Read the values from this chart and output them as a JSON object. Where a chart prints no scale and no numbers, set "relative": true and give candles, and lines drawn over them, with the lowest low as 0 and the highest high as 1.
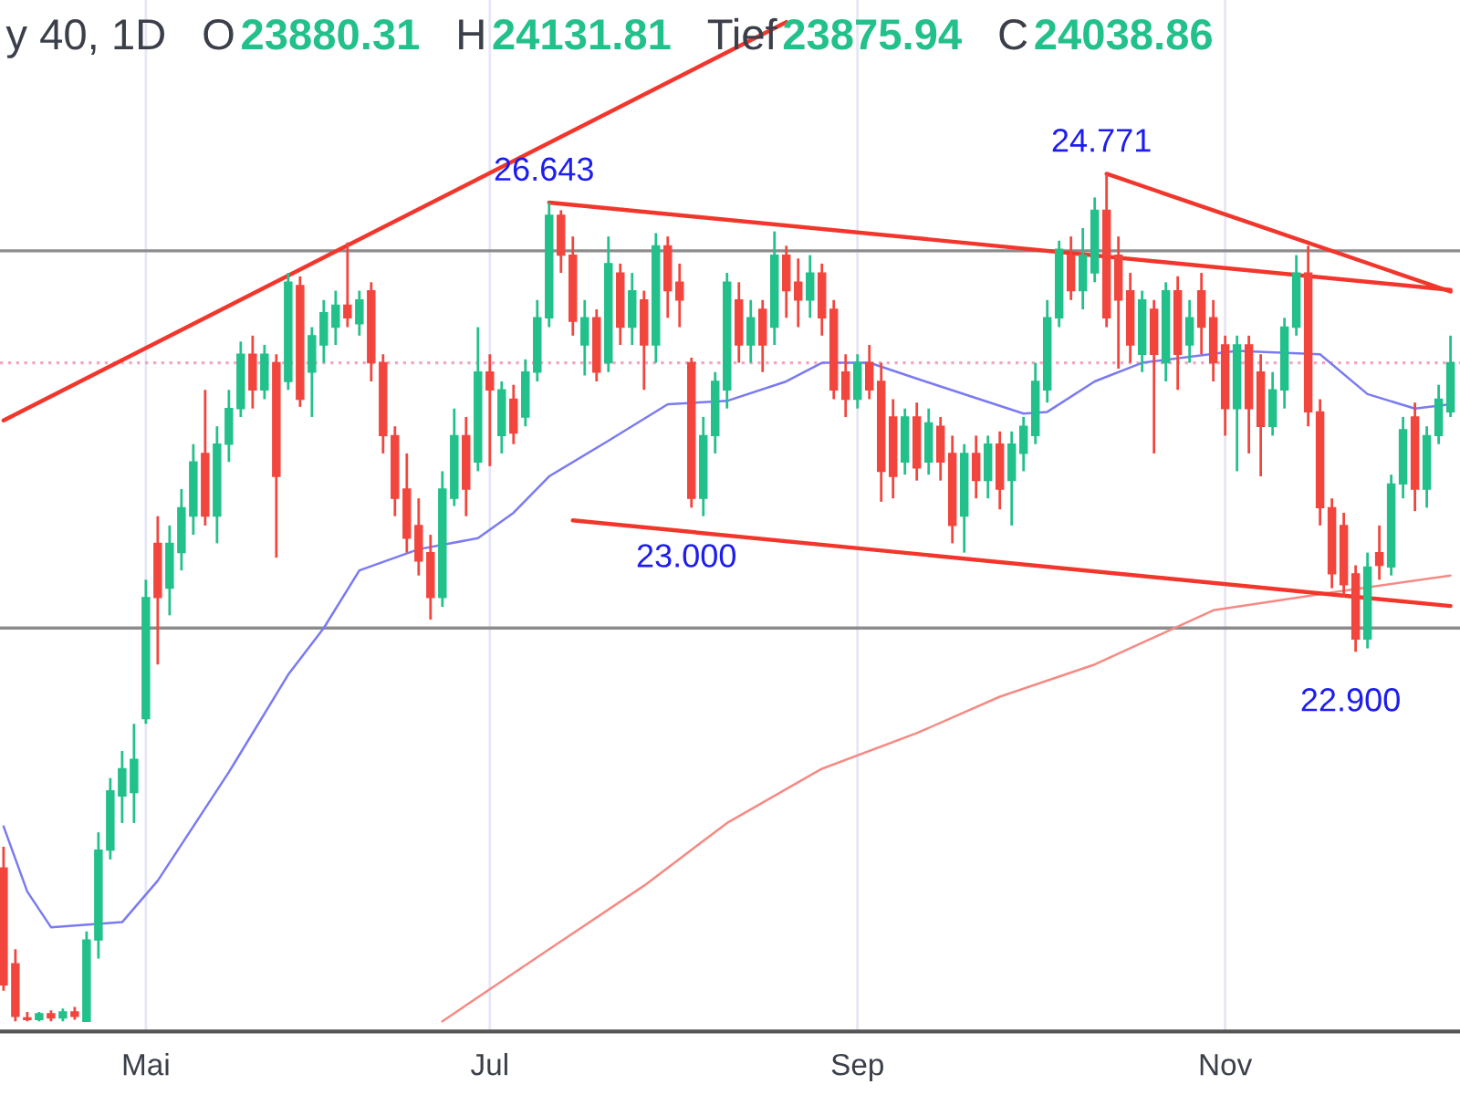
{
  "chart_data": {
    "type": "candlestick",
    "relative": true,
    "title": "y 40, 1D",
    "annotations": [
      "O",
      "23880.31",
      "H",
      "24131.81",
      "Tief",
      "23875.94",
      "C",
      "24038.86",
      {
        "text": "26.643",
        "y": 0.966
      },
      {
        "text": "24.771",
        "y": 1
      },
      {
        "text": "23.000",
        "y": 0.606
      },
      {
        "text": "22.900",
        "y": 0.436
      }
    ],
    "categories": [
      null,
      null,
      null,
      null,
      null,
      null,
      null,
      null,
      null,
      null,
      null,
      null,
      "Mai",
      null,
      null,
      null,
      null,
      null,
      null,
      null,
      null,
      null,
      null,
      null,
      null,
      null,
      null,
      null,
      null,
      null,
      null,
      null,
      null,
      null,
      null,
      null,
      null,
      null,
      null,
      null,
      null,
      "Jul",
      null,
      null,
      null,
      null,
      null,
      null,
      null,
      null,
      null,
      null,
      null,
      null,
      null,
      null,
      null,
      null,
      null,
      null,
      null,
      null,
      null,
      null,
      null,
      null,
      null,
      null,
      null,
      null,
      null,
      null,
      "Sep",
      null,
      null,
      null,
      null,
      null,
      null,
      null,
      null,
      null,
      null,
      null,
      null,
      null,
      null,
      null,
      null,
      null,
      null,
      null,
      null,
      null,
      null,
      null,
      null,
      null,
      null,
      null,
      null,
      null,
      null,
      "Nov",
      null,
      null,
      null,
      null,
      null,
      null,
      null,
      null,
      null,
      null,
      null,
      null,
      null,
      null,
      null,
      null,
      null,
      null,
      null
    ],
    "ohlc": [
      [
        0.181,
        0.206,
        0.036,
        0.043
      ],
      [
        0.068,
        0.085,
        0,
        0.006
      ],
      [
        0.004,
        0.011,
        0,
        0.002
      ],
      [
        0.002,
        0.011,
        0,
        0.009
      ],
      [
        0.009,
        0.013,
        0,
        0.004
      ],
      [
        0.004,
        0.015,
        0,
        0.011
      ],
      [
        0.011,
        0.017,
        0.002,
        0.006
      ],
      [
        0,
        0.106,
        0,
        0.096
      ],
      [
        0.096,
        0.223,
        0.074,
        0.202
      ],
      [
        0.202,
        0.287,
        0.191,
        0.272
      ],
      [
        0.266,
        0.319,
        0.234,
        0.298
      ],
      [
        0.27,
        0.351,
        0.234,
        0.309
      ],
      [
        0.357,
        0.521,
        0.351,
        0.5
      ],
      [
        0.564,
        0.596,
        0.421,
        0.5
      ],
      [
        0.511,
        0.585,
        0.479,
        0.564
      ],
      [
        0.553,
        0.628,
        0.532,
        0.606
      ],
      [
        0.596,
        0.681,
        0.574,
        0.66
      ],
      [
        0.67,
        0.745,
        0.585,
        0.596
      ],
      [
        0.596,
        0.702,
        0.564,
        0.681
      ],
      [
        0.681,
        0.745,
        0.66,
        0.723
      ],
      [
        0.723,
        0.802,
        0.713,
        0.787
      ],
      [
        0.787,
        0.809,
        0.723,
        0.745
      ],
      [
        0.745,
        0.798,
        0.734,
        0.787
      ],
      [
        0.777,
        0.787,
        0.547,
        0.643
      ],
      [
        0.755,
        0.883,
        0.745,
        0.872
      ],
      [
        0.868,
        0.879,
        0.725,
        0.734
      ],
      [
        0.766,
        0.819,
        0.713,
        0.809
      ],
      [
        0.798,
        0.851,
        0.777,
        0.836
      ],
      [
        0.819,
        0.862,
        0.798,
        0.845
      ],
      [
        0.845,
        0.919,
        0.819,
        0.83
      ],
      [
        0.823,
        0.862,
        0.809,
        0.851
      ],
      [
        0.862,
        0.872,
        0.755,
        0.777
      ],
      [
        0.777,
        0.787,
        0.67,
        0.691
      ],
      [
        0.691,
        0.702,
        0.596,
        0.617
      ],
      [
        0.628,
        0.67,
        0.553,
        0.57
      ],
      [
        0.585,
        0.617,
        0.526,
        0.543
      ],
      [
        0.553,
        0.574,
        0.474,
        0.5
      ],
      [
        0.5,
        0.649,
        0.489,
        0.628
      ],
      [
        0.617,
        0.723,
        0.608,
        0.691
      ],
      [
        0.691,
        0.713,
        0.596,
        0.628
      ],
      [
        0.66,
        0.819,
        0.649,
        0.766
      ],
      [
        0.766,
        0.787,
        0.655,
        0.745
      ],
      [
        0.691,
        0.755,
        0.67,
        0.745
      ],
      [
        0.734,
        0.751,
        0.681,
        0.694
      ],
      [
        0.713,
        0.781,
        0.702,
        0.766
      ],
      [
        0.766,
        0.851,
        0.755,
        0.83
      ],
      [
        0.83,
        0.966,
        0.819,
        0.951
      ],
      [
        0.951,
        0.957,
        0.883,
        0.904
      ],
      [
        0.904,
        0.926,
        0.809,
        0.826
      ],
      [
        0.798,
        0.851,
        0.762,
        0.83
      ],
      [
        0.83,
        0.84,
        0.755,
        0.766
      ],
      [
        0.777,
        0.926,
        0.766,
        0.894
      ],
      [
        0.883,
        0.894,
        0.798,
        0.819
      ],
      [
        0.819,
        0.883,
        0.798,
        0.862
      ],
      [
        0.851,
        0.862,
        0.745,
        0.798
      ],
      [
        0.798,
        0.93,
        0.777,
        0.915
      ],
      [
        0.915,
        0.926,
        0.83,
        0.862
      ],
      [
        0.872,
        0.894,
        0.819,
        0.851
      ],
      [
        0.777,
        0.783,
        0.606,
        0.617
      ],
      [
        0.617,
        0.713,
        0.596,
        0.691
      ],
      [
        0.691,
        0.766,
        0.67,
        0.755
      ],
      [
        0.745,
        0.883,
        0.723,
        0.872
      ],
      [
        0.851,
        0.872,
        0.777,
        0.798
      ],
      [
        0.798,
        0.851,
        0.777,
        0.83
      ],
      [
        0.84,
        0.851,
        0.766,
        0.798
      ],
      [
        0.819,
        0.932,
        0.798,
        0.904
      ],
      [
        0.904,
        0.915,
        0.83,
        0.862
      ],
      [
        0.872,
        0.9,
        0.819,
        0.851
      ],
      [
        0.851,
        0.904,
        0.83,
        0.883
      ],
      [
        0.883,
        0.894,
        0.809,
        0.83
      ],
      [
        0.84,
        0.851,
        0.734,
        0.745
      ],
      [
        0.766,
        0.787,
        0.713,
        0.734
      ],
      [
        0.734,
        0.787,
        0.723,
        0.777
      ],
      [
        0.777,
        0.798,
        0.734,
        0.745
      ],
      [
        0.755,
        0.777,
        0.613,
        0.649
      ],
      [
        0.713,
        0.734,
        0.617,
        0.643
      ],
      [
        0.66,
        0.723,
        0.645,
        0.713
      ],
      [
        0.713,
        0.73,
        0.638,
        0.653
      ],
      [
        0.66,
        0.723,
        0.645,
        0.706
      ],
      [
        0.702,
        0.713,
        0.638,
        0.66
      ],
      [
        0.67,
        0.691,
        0.564,
        0.585
      ],
      [
        0.596,
        0.681,
        0.553,
        0.67
      ],
      [
        0.67,
        0.691,
        0.617,
        0.638
      ],
      [
        0.638,
        0.691,
        0.617,
        0.681
      ],
      [
        0.681,
        0.696,
        0.604,
        0.628
      ],
      [
        0.638,
        0.696,
        0.585,
        0.681
      ],
      [
        0.67,
        0.713,
        0.649,
        0.702
      ],
      [
        0.691,
        0.777,
        0.681,
        0.755
      ],
      [
        0.745,
        0.851,
        0.73,
        0.83
      ],
      [
        0.83,
        0.921,
        0.819,
        0.911
      ],
      [
        0.904,
        0.926,
        0.851,
        0.862
      ],
      [
        0.862,
        0.936,
        0.84,
        0.904
      ],
      [
        0.883,
        0.972,
        0.872,
        0.957
      ],
      [
        0.957,
        1,
        0.819,
        0.83
      ],
      [
        0.904,
        0.926,
        0.77,
        0.851
      ],
      [
        0.862,
        0.883,
        0.777,
        0.798
      ],
      [
        0.787,
        0.862,
        0.766,
        0.851
      ],
      [
        0.84,
        0.851,
        0.67,
        0.787
      ],
      [
        0.777,
        0.872,
        0.755,
        0.862
      ],
      [
        0.862,
        0.879,
        0.745,
        0.787
      ],
      [
        0.798,
        0.851,
        0.777,
        0.83
      ],
      [
        0.862,
        0.883,
        0.787,
        0.819
      ],
      [
        0.83,
        0.851,
        0.755,
        0.777
      ],
      [
        0.798,
        0.809,
        0.691,
        0.723
      ],
      [
        0.723,
        0.809,
        0.649,
        0.798
      ],
      [
        0.798,
        0.809,
        0.67,
        0.723
      ],
      [
        0.766,
        0.787,
        0.643,
        0.702
      ],
      [
        0.702,
        0.766,
        0.691,
        0.745
      ],
      [
        0.745,
        0.83,
        0.723,
        0.819
      ],
      [
        0.819,
        0.904,
        0.809,
        0.883
      ],
      [
        0.883,
        0.915,
        0.702,
        0.719
      ],
      [
        0.719,
        0.734,
        0.585,
        0.606
      ],
      [
        0.606,
        0.617,
        0.511,
        0.528
      ],
      [
        0.585,
        0.6,
        0.5,
        0.515
      ],
      [
        0.528,
        0.538,
        0.436,
        0.451
      ],
      [
        0.451,
        0.553,
        0.44,
        0.536
      ],
      [
        0.553,
        0.585,
        0.521,
        0.538
      ],
      [
        0.536,
        0.645,
        0.526,
        0.634
      ],
      [
        0.634,
        0.713,
        0.617,
        0.698
      ],
      [
        0.713,
        0.73,
        0.602,
        0.628
      ],
      [
        0.628,
        0.702,
        0.606,
        0.691
      ],
      [
        0.691,
        0.751,
        0.681,
        0.734
      ],
      [
        0.719,
        0.809,
        0.713,
        0.777
      ]
    ],
    "series": [
      {
        "type": "line",
        "color": "#7a7af2",
        "values": [
          0.23,
          null,
          0.153,
          null,
          0.111,
          null,
          null,
          null,
          null,
          null,
          0.117,
          null,
          null,
          0.166,
          null,
          null,
          null,
          null,
          null,
          0.294,
          null,
          null,
          null,
          null,
          0.409,
          null,
          null,
          0.464,
          null,
          null,
          0.532,
          null,
          null,
          null,
          null,
          0.557,
          null,
          null,
          null,
          null,
          0.57,
          null,
          null,
          0.6,
          null,
          null,
          0.643,
          null,
          null,
          null,
          null,
          0.685,
          null,
          null,
          null,
          null,
          0.728,
          null,
          null,
          null,
          null,
          0.732,
          null,
          null,
          null,
          null,
          0.755,
          null,
          null,
          0.777,
          null,
          null,
          null,
          0.777,
          null,
          null,
          null,
          null,
          null,
          0.749,
          null,
          null,
          null,
          null,
          null,
          null,
          0.717,
          null,
          0.719,
          null,
          null,
          null,
          0.755,
          null,
          null,
          null,
          0.777,
          null,
          null,
          null,
          null,
          null,
          null,
          null,
          0.791,
          null,
          null,
          null,
          null,
          null,
          null,
          0.787,
          null,
          null,
          null,
          0.74,
          null,
          null,
          null,
          0.723,
          null,
          null,
          0.728
        ]
      },
      {
        "type": "line",
        "color": "#f58a84",
        "values": [
          null,
          null,
          null,
          null,
          null,
          null,
          null,
          null,
          null,
          null,
          null,
          null,
          null,
          null,
          null,
          null,
          null,
          null,
          null,
          null,
          null,
          null,
          null,
          null,
          null,
          null,
          null,
          null,
          null,
          null,
          null,
          null,
          null,
          null,
          null,
          null,
          null,
          0,
          null,
          null,
          null,
          null,
          null,
          null,
          null,
          null,
          0.085,
          null,
          null,
          null,
          null,
          null,
          null,
          null,
          0.16,
          null,
          null,
          null,
          null,
          null,
          null,
          0.234,
          null,
          null,
          null,
          null,
          null,
          null,
          null,
          0.298,
          null,
          null,
          null,
          null,
          null,
          null,
          null,
          0.34,
          null,
          null,
          null,
          null,
          null,
          null,
          0.383,
          null,
          null,
          null,
          null,
          null,
          null,
          null,
          0.421,
          null,
          null,
          null,
          null,
          null,
          null,
          null,
          null,
          null,
          0.485,
          null,
          null,
          null,
          null,
          null,
          null,
          null,
          null,
          null,
          0.506,
          null,
          null,
          null,
          null,
          null,
          null,
          null,
          null,
          null,
          0.526
        ]
      },
      {
        "type": "line",
        "color": "#f2362c",
        "values": [
          0.709,
          null,
          null,
          null,
          null,
          null,
          null,
          null,
          null,
          null,
          null,
          null,
          null,
          null,
          null,
          null,
          null,
          null,
          null,
          null,
          null,
          null,
          null,
          null,
          null,
          null,
          null,
          null,
          null,
          null,
          null,
          null,
          null,
          null,
          null,
          null,
          null,
          null,
          null,
          null,
          null,
          null,
          null,
          null,
          null,
          null,
          null,
          null,
          null,
          null,
          null,
          null,
          null,
          null,
          null,
          null,
          null,
          null,
          null,
          null,
          null,
          null,
          null,
          null,
          null,
          null,
          1.179,
          null,
          null,
          null,
          null,
          null,
          null,
          null,
          null,
          null,
          null,
          null,
          null,
          null,
          null,
          null,
          null,
          null,
          null,
          null,
          null,
          null,
          null,
          null,
          null,
          null,
          null,
          null,
          null,
          null,
          null,
          null,
          null,
          null,
          null,
          null,
          null,
          null,
          null,
          null,
          null,
          null,
          null,
          null,
          null,
          null,
          null,
          null,
          null,
          null,
          null,
          null,
          null,
          null,
          null,
          null,
          null
        ]
      },
      {
        "type": "line",
        "color": "#f2362c",
        "values": [
          null,
          null,
          null,
          null,
          null,
          null,
          null,
          null,
          null,
          null,
          null,
          null,
          null,
          null,
          null,
          null,
          null,
          null,
          null,
          null,
          null,
          null,
          null,
          null,
          null,
          null,
          null,
          null,
          null,
          null,
          null,
          null,
          null,
          null,
          null,
          null,
          null,
          null,
          null,
          null,
          null,
          null,
          null,
          null,
          null,
          null,
          0.966,
          null,
          null,
          null,
          null,
          null,
          null,
          null,
          null,
          null,
          null,
          null,
          null,
          null,
          null,
          null,
          null,
          null,
          null,
          null,
          null,
          null,
          null,
          null,
          null,
          null,
          null,
          null,
          null,
          null,
          null,
          null,
          null,
          null,
          null,
          null,
          null,
          null,
          null,
          null,
          null,
          null,
          null,
          null,
          null,
          null,
          null,
          null,
          null,
          null,
          null,
          null,
          null,
          null,
          null,
          null,
          null,
          null,
          null,
          null,
          null,
          null,
          null,
          null,
          null,
          null,
          null,
          null,
          null,
          null,
          null,
          null,
          null,
          null,
          null,
          null,
          0.863
        ]
      },
      {
        "type": "line",
        "color": "#f2362c",
        "values": [
          null,
          null,
          null,
          null,
          null,
          null,
          null,
          null,
          null,
          null,
          null,
          null,
          null,
          null,
          null,
          null,
          null,
          null,
          null,
          null,
          null,
          null,
          null,
          null,
          null,
          null,
          null,
          null,
          null,
          null,
          null,
          null,
          null,
          null,
          null,
          null,
          null,
          null,
          null,
          null,
          null,
          null,
          null,
          null,
          null,
          null,
          null,
          null,
          null,
          null,
          null,
          null,
          null,
          null,
          null,
          null,
          null,
          null,
          null,
          null,
          null,
          null,
          null,
          null,
          null,
          null,
          null,
          null,
          null,
          null,
          null,
          null,
          null,
          null,
          null,
          null,
          null,
          null,
          null,
          null,
          null,
          null,
          null,
          null,
          null,
          null,
          null,
          null,
          null,
          null,
          null,
          null,
          null,
          1,
          null,
          null,
          null,
          null,
          null,
          null,
          null,
          null,
          null,
          null,
          null,
          null,
          null,
          null,
          null,
          null,
          null,
          null,
          null,
          null,
          null,
          null,
          null,
          null,
          null,
          null,
          null,
          null,
          0.861
        ]
      },
      {
        "type": "line",
        "color": "#f2362c",
        "values": [
          null,
          null,
          null,
          null,
          null,
          null,
          null,
          null,
          null,
          null,
          null,
          null,
          null,
          null,
          null,
          null,
          null,
          null,
          null,
          null,
          null,
          null,
          null,
          null,
          null,
          null,
          null,
          null,
          null,
          null,
          null,
          null,
          null,
          null,
          null,
          null,
          null,
          null,
          null,
          null,
          null,
          null,
          null,
          null,
          null,
          null,
          null,
          null,
          0.591,
          null,
          null,
          null,
          null,
          null,
          null,
          null,
          null,
          null,
          null,
          null,
          null,
          null,
          null,
          null,
          null,
          null,
          null,
          null,
          null,
          null,
          null,
          null,
          null,
          null,
          null,
          null,
          null,
          null,
          null,
          null,
          null,
          null,
          null,
          null,
          null,
          null,
          null,
          null,
          null,
          null,
          null,
          null,
          null,
          null,
          null,
          null,
          null,
          null,
          null,
          null,
          null,
          null,
          null,
          null,
          null,
          null,
          null,
          null,
          null,
          null,
          null,
          null,
          null,
          null,
          null,
          null,
          null,
          null,
          null,
          null,
          null,
          null,
          0.49
        ]
      }
    ],
    "ref_lines": [
      {
        "axis": "y",
        "value": 0.909,
        "color": "#8c8c8c"
      },
      {
        "axis": "y",
        "value": 0.464,
        "color": "#8c8c8c"
      },
      {
        "axis": "y",
        "value": 0.777,
        "color": "#f3a5c4",
        "line_style": "dotted"
      }
    ],
    "tick_labels": "x",
    "grid": "x",
    "legend": false
  }
}
